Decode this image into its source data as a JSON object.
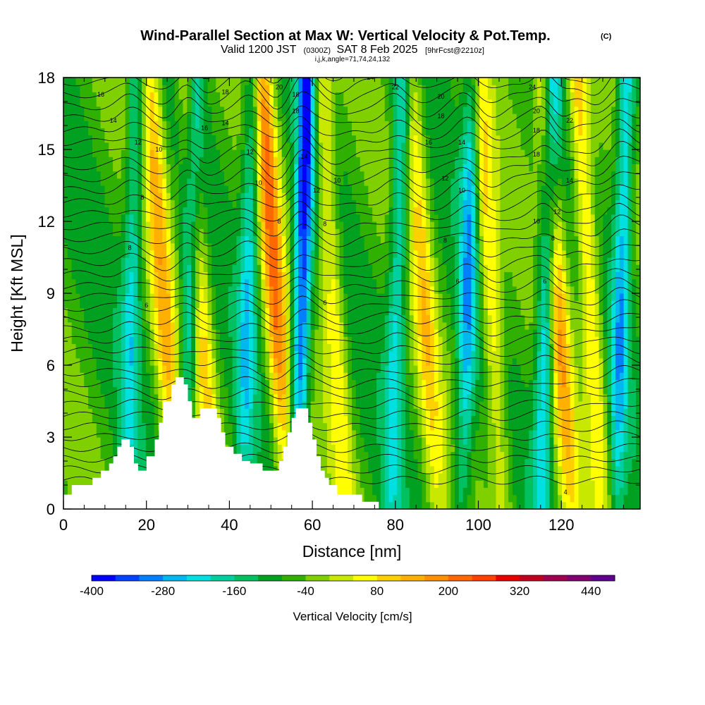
{
  "title": "Wind-Parallel Section at Max W: Vertical Velocity & Pot.Temp.",
  "copyright": "(C)",
  "subtitle": {
    "valid": "Valid 1200 JST",
    "utc": "(0300Z)",
    "date": "SAT 8 Feb 2025",
    "forecast": "[9hrFcst@2210z]"
  },
  "params": "i,j,k,angle=71,74,24,132",
  "chart_data": {
    "type": "heatmap",
    "xlabel": "Distance [nm]",
    "ylabel": "Height [Kft MSL]",
    "xlim": [
      0,
      139
    ],
    "ylim": [
      0,
      18
    ],
    "x_ticks": [
      "0",
      "20",
      "40",
      "60",
      "80",
      "100",
      "120"
    ],
    "y_ticks": [
      "0",
      "3",
      "6",
      "9",
      "12",
      "15",
      "18"
    ],
    "colorbar": {
      "label": "Vertical Velocity [cm/s]",
      "ticks": [
        "-400",
        "-280",
        "-160",
        "-40",
        "80",
        "200",
        "320",
        "440"
      ],
      "colors": [
        "#0000ff",
        "#0040ff",
        "#0080ff",
        "#00b8f0",
        "#00e0e0",
        "#00d0a0",
        "#00c060",
        "#00a020",
        "#30b000",
        "#80d000",
        "#c8e800",
        "#ffff00",
        "#ffd000",
        "#ffb000",
        "#ff9000",
        "#ff6800",
        "#ff4000",
        "#e80000",
        "#c00020",
        "#a00050",
        "#800070",
        "#600090"
      ]
    },
    "updrafts": [
      {
        "x": 25,
        "strength": 0.6
      },
      {
        "x": 34,
        "strength": 0.55
      },
      {
        "x": 52,
        "strength": 0.85
      },
      {
        "x": 66,
        "strength": 0.5
      },
      {
        "x": 88,
        "strength": 0.5
      },
      {
        "x": 104,
        "strength": 0.55
      },
      {
        "x": 120,
        "strength": 0.7
      },
      {
        "x": 128,
        "strength": 0.6
      }
    ],
    "downdrafts": [
      {
        "x": 16,
        "strength": 0.45
      },
      {
        "x": 30,
        "strength": 0.55
      },
      {
        "x": 44,
        "strength": 0.5
      },
      {
        "x": 57,
        "strength": 0.95
      },
      {
        "x": 80,
        "strength": 0.5
      },
      {
        "x": 97,
        "strength": 0.6
      },
      {
        "x": 116,
        "strength": 0.7
      },
      {
        "x": 134,
        "strength": 0.6
      }
    ],
    "terrain": [
      [
        0,
        0.6
      ],
      [
        2,
        0.6
      ],
      [
        2,
        1.0
      ],
      [
        7,
        1.0
      ],
      [
        7,
        1.3
      ],
      [
        9,
        1.3
      ],
      [
        9,
        1.6
      ],
      [
        11,
        1.6
      ],
      [
        11,
        1.9
      ],
      [
        12,
        1.9
      ],
      [
        12,
        2.2
      ],
      [
        13,
        2.2
      ],
      [
        13,
        2.6
      ],
      [
        14,
        2.6
      ],
      [
        14,
        2.9
      ],
      [
        16,
        2.9
      ],
      [
        16,
        2.6
      ],
      [
        17,
        2.6
      ],
      [
        17,
        1.9
      ],
      [
        18,
        1.9
      ],
      [
        18,
        1.6
      ],
      [
        20,
        1.6
      ],
      [
        20,
        2.2
      ],
      [
        22,
        2.2
      ],
      [
        22,
        2.9
      ],
      [
        23,
        2.9
      ],
      [
        23,
        3.6
      ],
      [
        24,
        3.6
      ],
      [
        24,
        4.5
      ],
      [
        26,
        4.5
      ],
      [
        26,
        5.2
      ],
      [
        27,
        5.2
      ],
      [
        27,
        5.5
      ],
      [
        29,
        5.5
      ],
      [
        29,
        5.2
      ],
      [
        30,
        5.2
      ],
      [
        30,
        4.5
      ],
      [
        31,
        4.5
      ],
      [
        31,
        3.8
      ],
      [
        33,
        3.8
      ],
      [
        33,
        4.2
      ],
      [
        37,
        4.2
      ],
      [
        37,
        3.8
      ],
      [
        38,
        3.8
      ],
      [
        38,
        3.2
      ],
      [
        39,
        3.2
      ],
      [
        39,
        2.6
      ],
      [
        41,
        2.6
      ],
      [
        41,
        2.3
      ],
      [
        43,
        2.3
      ],
      [
        43,
        2.0
      ],
      [
        45,
        2.0
      ],
      [
        45,
        1.9
      ],
      [
        48,
        1.9
      ],
      [
        48,
        1.6
      ],
      [
        52,
        1.6
      ],
      [
        52,
        2.0
      ],
      [
        53,
        2.0
      ],
      [
        53,
        2.6
      ],
      [
        54,
        2.6
      ],
      [
        54,
        3.2
      ],
      [
        55,
        3.2
      ],
      [
        55,
        3.8
      ],
      [
        56,
        3.8
      ],
      [
        56,
        4.2
      ],
      [
        59,
        4.2
      ],
      [
        59,
        3.6
      ],
      [
        60,
        3.6
      ],
      [
        60,
        2.9
      ],
      [
        61,
        2.9
      ],
      [
        61,
        2.2
      ],
      [
        62,
        2.2
      ],
      [
        62,
        1.6
      ],
      [
        63,
        1.6
      ],
      [
        63,
        1.3
      ],
      [
        64,
        1.3
      ],
      [
        64,
        1.0
      ],
      [
        66,
        1.0
      ],
      [
        66,
        0.6
      ],
      [
        72,
        0.6
      ],
      [
        72,
        0.3
      ],
      [
        76,
        0.3
      ],
      [
        76,
        0
      ],
      [
        0,
        0
      ]
    ],
    "contour_labels": [
      "4",
      "6",
      "8",
      "10",
      "12",
      "14",
      "16",
      "18",
      "20",
      "22",
      "24"
    ]
  }
}
